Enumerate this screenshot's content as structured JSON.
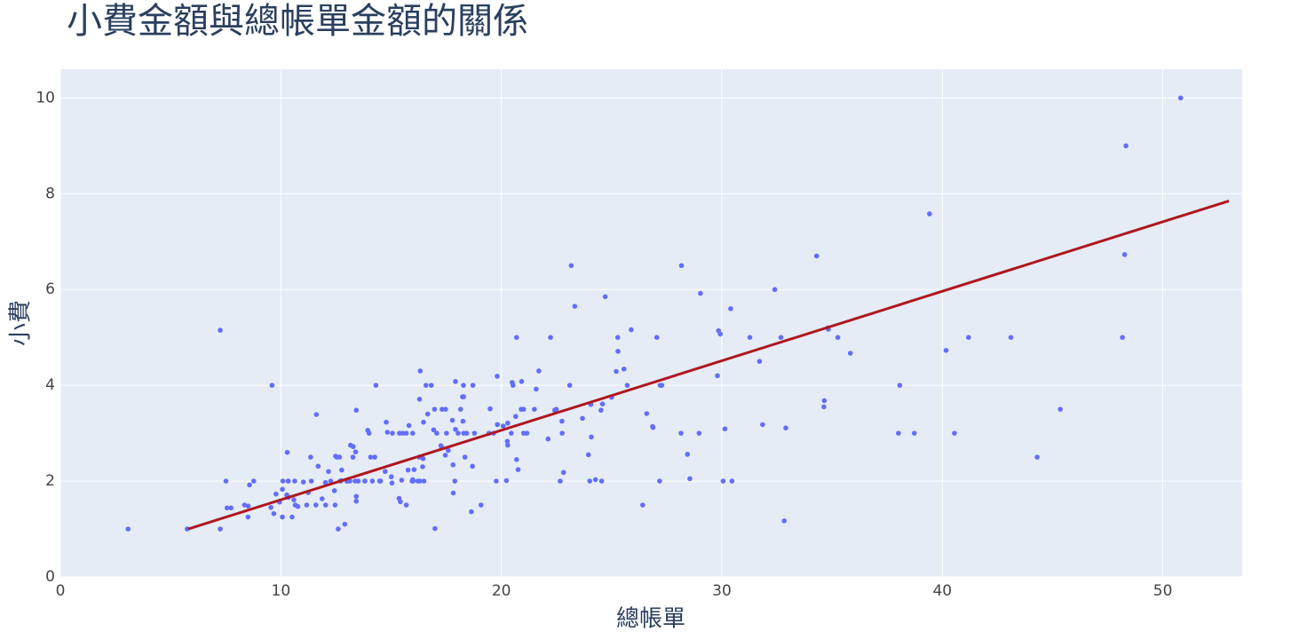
{
  "chart_data": {
    "type": "scatter",
    "title": "小費金額與總帳單金額的關係",
    "x_label": "總帳單",
    "y_label": "小費",
    "xlim": [
      0,
      53.6
    ],
    "ylim": [
      0,
      10.6
    ],
    "xticks": [
      0,
      10,
      20,
      30,
      40,
      50
    ],
    "yticks": [
      0,
      2,
      4,
      6,
      8,
      10
    ],
    "grid": true,
    "series": [
      {
        "type": "scatter",
        "color": "#636efa",
        "x": [
          16.99,
          10.34,
          21.01,
          23.68,
          24.59,
          25.29,
          8.77,
          26.88,
          15.04,
          14.78,
          10.27,
          35.26,
          15.42,
          18.43,
          14.83,
          21.58,
          10.33,
          16.29,
          16.97,
          20.65,
          17.92,
          20.29,
          15.77,
          39.42,
          19.82,
          17.81,
          13.37,
          12.69,
          21.7,
          19.65,
          9.55,
          18.35,
          15.06,
          20.69,
          17.78,
          24.06,
          16.31,
          16.93,
          18.69,
          31.27,
          16.04,
          17.46,
          13.94,
          9.68,
          30.4,
          18.29,
          22.23,
          32.4,
          28.55,
          18.04,
          12.54,
          10.29,
          34.81,
          9.94,
          25.56,
          19.49,
          38.01,
          26.41,
          11.24,
          48.27,
          20.29,
          13.81,
          11.02,
          18.29,
          17.59,
          20.08,
          16.45,
          3.07,
          20.23,
          15.01,
          12.02,
          17.07,
          26.86,
          25.28,
          14.73,
          10.51,
          17.92,
          27.2,
          22.76,
          17.29,
          19.44,
          16.66,
          10.07,
          32.68,
          15.98,
          34.83,
          13.03,
          18.28,
          24.71,
          21.16,
          28.97,
          22.49,
          5.75,
          16.32,
          22.75,
          40.17,
          27.28,
          12.03,
          21.01,
          12.46,
          11.35,
          15.38,
          44.3,
          22.42,
          20.92,
          15.36,
          20.49,
          25.21,
          18.24,
          14.31,
          14.0,
          7.25,
          38.07,
          23.95,
          25.71,
          17.31,
          29.93,
          10.65,
          12.43,
          24.08,
          11.69,
          13.42,
          14.26,
          15.95,
          12.48,
          29.8,
          8.52,
          14.52,
          11.38,
          22.82,
          19.08,
          20.27,
          11.17,
          12.26,
          18.26,
          8.51,
          10.33,
          14.15,
          16.0,
          13.16,
          17.47,
          34.3,
          41.19,
          27.05,
          16.43,
          8.35,
          18.64,
          11.87,
          9.78,
          7.51,
          14.07,
          13.13,
          17.26,
          24.55,
          19.77,
          29.85,
          48.17,
          25.0,
          13.39,
          16.49,
          21.5,
          12.66,
          16.21,
          13.81,
          17.51,
          24.52,
          20.76,
          31.71,
          10.59,
          10.63,
          50.81,
          15.81,
          7.25,
          31.85,
          16.82,
          32.9,
          17.89,
          14.48,
          9.6,
          34.63,
          34.65,
          23.33,
          45.35,
          23.17,
          40.55,
          20.69,
          20.9,
          30.46,
          18.15,
          23.1,
          15.69,
          19.81,
          28.44,
          15.48,
          16.58,
          7.56,
          10.34,
          43.11,
          13.0,
          13.51,
          18.71,
          12.74,
          13.0,
          16.4,
          20.53,
          16.47,
          26.59,
          38.73,
          24.27,
          12.76,
          30.06,
          25.89,
          48.33,
          13.27,
          28.17,
          12.9,
          28.15,
          11.59,
          7.74,
          30.14,
          12.16,
          13.42,
          8.58,
          15.98,
          13.42,
          16.27,
          10.09,
          20.45,
          13.28,
          22.12,
          24.01,
          15.69,
          11.61,
          10.77,
          15.53,
          10.07,
          12.6,
          32.83,
          35.83,
          29.03,
          27.18,
          22.67,
          17.82,
          18.78
        ],
        "values": [
          1.01,
          1.66,
          3.5,
          3.31,
          3.61,
          4.71,
          2.0,
          3.12,
          1.96,
          3.23,
          1.71,
          5.0,
          1.57,
          3.0,
          3.02,
          3.92,
          1.67,
          3.71,
          3.5,
          3.35,
          4.08,
          2.75,
          2.23,
          7.58,
          3.18,
          2.34,
          2.0,
          2.0,
          4.3,
          3.0,
          1.45,
          2.5,
          3.0,
          2.45,
          3.27,
          3.6,
          2.0,
          3.07,
          2.31,
          5.0,
          2.24,
          2.54,
          3.06,
          1.32,
          5.6,
          3.0,
          5.0,
          6.0,
          2.05,
          3.0,
          2.5,
          2.6,
          5.2,
          1.56,
          4.34,
          3.51,
          3.0,
          1.5,
          1.76,
          6.73,
          3.21,
          2.0,
          1.98,
          3.76,
          2.64,
          3.15,
          2.47,
          1.0,
          2.01,
          2.09,
          1.97,
          3.0,
          3.14,
          5.0,
          2.2,
          1.25,
          3.08,
          4.0,
          3.0,
          2.71,
          3.0,
          3.4,
          1.83,
          5.0,
          2.03,
          5.17,
          2.0,
          4.0,
          5.85,
          3.0,
          3.0,
          3.5,
          1.0,
          4.3,
          3.25,
          4.73,
          4.0,
          1.5,
          3.0,
          1.5,
          2.5,
          3.0,
          2.5,
          3.48,
          4.08,
          1.64,
          4.06,
          4.29,
          3.76,
          4.0,
          3.0,
          1.0,
          4.0,
          2.55,
          4.0,
          3.5,
          5.07,
          1.5,
          1.8,
          2.92,
          2.31,
          1.68,
          2.5,
          2.0,
          2.52,
          4.2,
          1.48,
          2.0,
          2.0,
          2.18,
          1.5,
          2.83,
          1.5,
          2.0,
          3.25,
          1.25,
          2.0,
          2.0,
          2.0,
          2.75,
          3.5,
          6.7,
          5.0,
          5.0,
          2.3,
          1.5,
          1.36,
          1.63,
          1.73,
          2.0,
          2.5,
          2.0,
          2.74,
          2.0,
          2.0,
          5.14,
          5.0,
          3.75,
          2.61,
          2.0,
          3.5,
          2.5,
          2.0,
          2.0,
          3.0,
          3.48,
          2.24,
          4.5,
          1.61,
          2.0,
          10.0,
          3.16,
          5.15,
          3.18,
          4.0,
          3.11,
          2.0,
          2.0,
          4.0,
          3.55,
          3.68,
          5.65,
          3.5,
          6.5,
          3.0,
          5.0,
          3.5,
          2.0,
          3.5,
          4.0,
          1.5,
          4.19,
          2.56,
          2.02,
          4.0,
          1.44,
          2.0,
          5.0,
          2.0,
          2.0,
          4.0,
          2.01,
          2.0,
          2.5,
          4.0,
          3.23,
          3.41,
          3.0,
          2.03,
          2.23,
          2.0,
          5.16,
          9.0,
          2.5,
          6.5,
          1.1,
          3.0,
          1.5,
          1.44,
          3.09,
          2.2,
          3.48,
          1.92,
          3.0,
          1.58,
          2.5,
          2.0,
          3.0,
          2.72,
          2.88,
          2.0,
          3.0,
          3.39,
          1.47,
          3.0,
          1.25,
          1.0,
          1.17,
          4.67,
          5.92,
          2.0,
          2.0,
          1.75,
          3.0
        ]
      },
      {
        "type": "line",
        "color": "#b0171f",
        "x": [
          5.8,
          53
        ],
        "values": [
          1.0,
          7.85
        ]
      }
    ]
  }
}
